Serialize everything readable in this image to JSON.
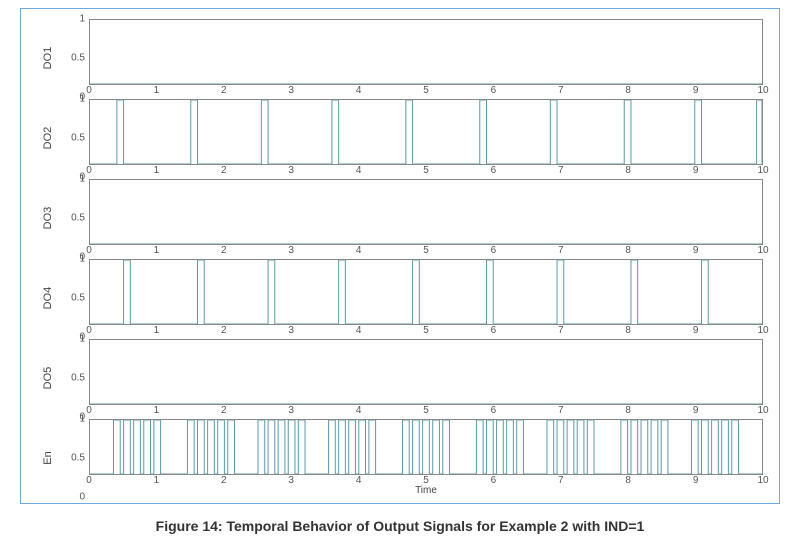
{
  "caption": "Figure 14: Temporal Behavior of Output Signals for Example 2 with IND=1",
  "xlabel": "Time",
  "xlim": [
    0,
    10
  ],
  "ylim": [
    0,
    1
  ],
  "xticks": [
    0,
    1,
    2,
    3,
    4,
    5,
    6,
    7,
    8,
    9,
    10
  ],
  "yticks": [
    0,
    0.5,
    1
  ],
  "colors": {
    "border": "#6fa8dc",
    "axis": "#888888",
    "signal_stroke": "#5a9bab",
    "text": "#444444",
    "background": "#ffffff"
  },
  "stroke_width": 1,
  "panels": [
    {
      "label": "DO1",
      "pulses": []
    },
    {
      "label": "DO2",
      "pulses": [
        {
          "start": 0.4,
          "end": 0.5
        },
        {
          "start": 1.5,
          "end": 1.6
        },
        {
          "start": 2.55,
          "end": 2.65
        },
        {
          "start": 3.6,
          "end": 3.7
        },
        {
          "start": 4.7,
          "end": 4.8
        },
        {
          "start": 5.8,
          "end": 5.9
        },
        {
          "start": 6.85,
          "end": 6.95
        },
        {
          "start": 7.95,
          "end": 8.05
        },
        {
          "start": 9.0,
          "end": 9.1
        },
        {
          "start": 9.92,
          "end": 10.0
        }
      ]
    },
    {
      "label": "DO3",
      "pulses": []
    },
    {
      "label": "DO4",
      "pulses": [
        {
          "start": 0.5,
          "end": 0.6
        },
        {
          "start": 1.6,
          "end": 1.7
        },
        {
          "start": 2.65,
          "end": 2.75
        },
        {
          "start": 3.7,
          "end": 3.8
        },
        {
          "start": 4.8,
          "end": 4.9
        },
        {
          "start": 5.9,
          "end": 6.0
        },
        {
          "start": 6.95,
          "end": 7.05
        },
        {
          "start": 8.05,
          "end": 8.15
        },
        {
          "start": 9.1,
          "end": 9.2
        }
      ]
    },
    {
      "label": "DO5",
      "pulses": []
    },
    {
      "label": "En",
      "pulses": [
        {
          "start": 0.35,
          "end": 0.45
        },
        {
          "start": 0.5,
          "end": 0.6
        },
        {
          "start": 0.65,
          "end": 0.75
        },
        {
          "start": 0.8,
          "end": 0.9
        },
        {
          "start": 0.95,
          "end": 1.05
        },
        {
          "start": 1.45,
          "end": 1.55
        },
        {
          "start": 1.6,
          "end": 1.7
        },
        {
          "start": 1.75,
          "end": 1.85
        },
        {
          "start": 1.9,
          "end": 2.0
        },
        {
          "start": 2.05,
          "end": 2.15
        },
        {
          "start": 2.5,
          "end": 2.6
        },
        {
          "start": 2.65,
          "end": 2.75
        },
        {
          "start": 2.8,
          "end": 2.9
        },
        {
          "start": 2.95,
          "end": 3.05
        },
        {
          "start": 3.1,
          "end": 3.2
        },
        {
          "start": 3.55,
          "end": 3.65
        },
        {
          "start": 3.7,
          "end": 3.8
        },
        {
          "start": 3.85,
          "end": 3.95
        },
        {
          "start": 4.0,
          "end": 4.1
        },
        {
          "start": 4.15,
          "end": 4.25
        },
        {
          "start": 4.65,
          "end": 4.75
        },
        {
          "start": 4.8,
          "end": 4.9
        },
        {
          "start": 4.95,
          "end": 5.05
        },
        {
          "start": 5.1,
          "end": 5.2
        },
        {
          "start": 5.25,
          "end": 5.35
        },
        {
          "start": 5.75,
          "end": 5.85
        },
        {
          "start": 5.9,
          "end": 6.0
        },
        {
          "start": 6.05,
          "end": 6.15
        },
        {
          "start": 6.2,
          "end": 6.3
        },
        {
          "start": 6.35,
          "end": 6.45
        },
        {
          "start": 6.8,
          "end": 6.9
        },
        {
          "start": 6.95,
          "end": 7.05
        },
        {
          "start": 7.1,
          "end": 7.2
        },
        {
          "start": 7.25,
          "end": 7.35
        },
        {
          "start": 7.4,
          "end": 7.5
        },
        {
          "start": 7.9,
          "end": 8.0
        },
        {
          "start": 8.05,
          "end": 8.15
        },
        {
          "start": 8.2,
          "end": 8.3
        },
        {
          "start": 8.35,
          "end": 8.45
        },
        {
          "start": 8.5,
          "end": 8.6
        },
        {
          "start": 8.95,
          "end": 9.05
        },
        {
          "start": 9.1,
          "end": 9.2
        },
        {
          "start": 9.25,
          "end": 9.35
        },
        {
          "start": 9.4,
          "end": 9.5
        },
        {
          "start": 9.55,
          "end": 9.65
        }
      ]
    }
  ]
}
